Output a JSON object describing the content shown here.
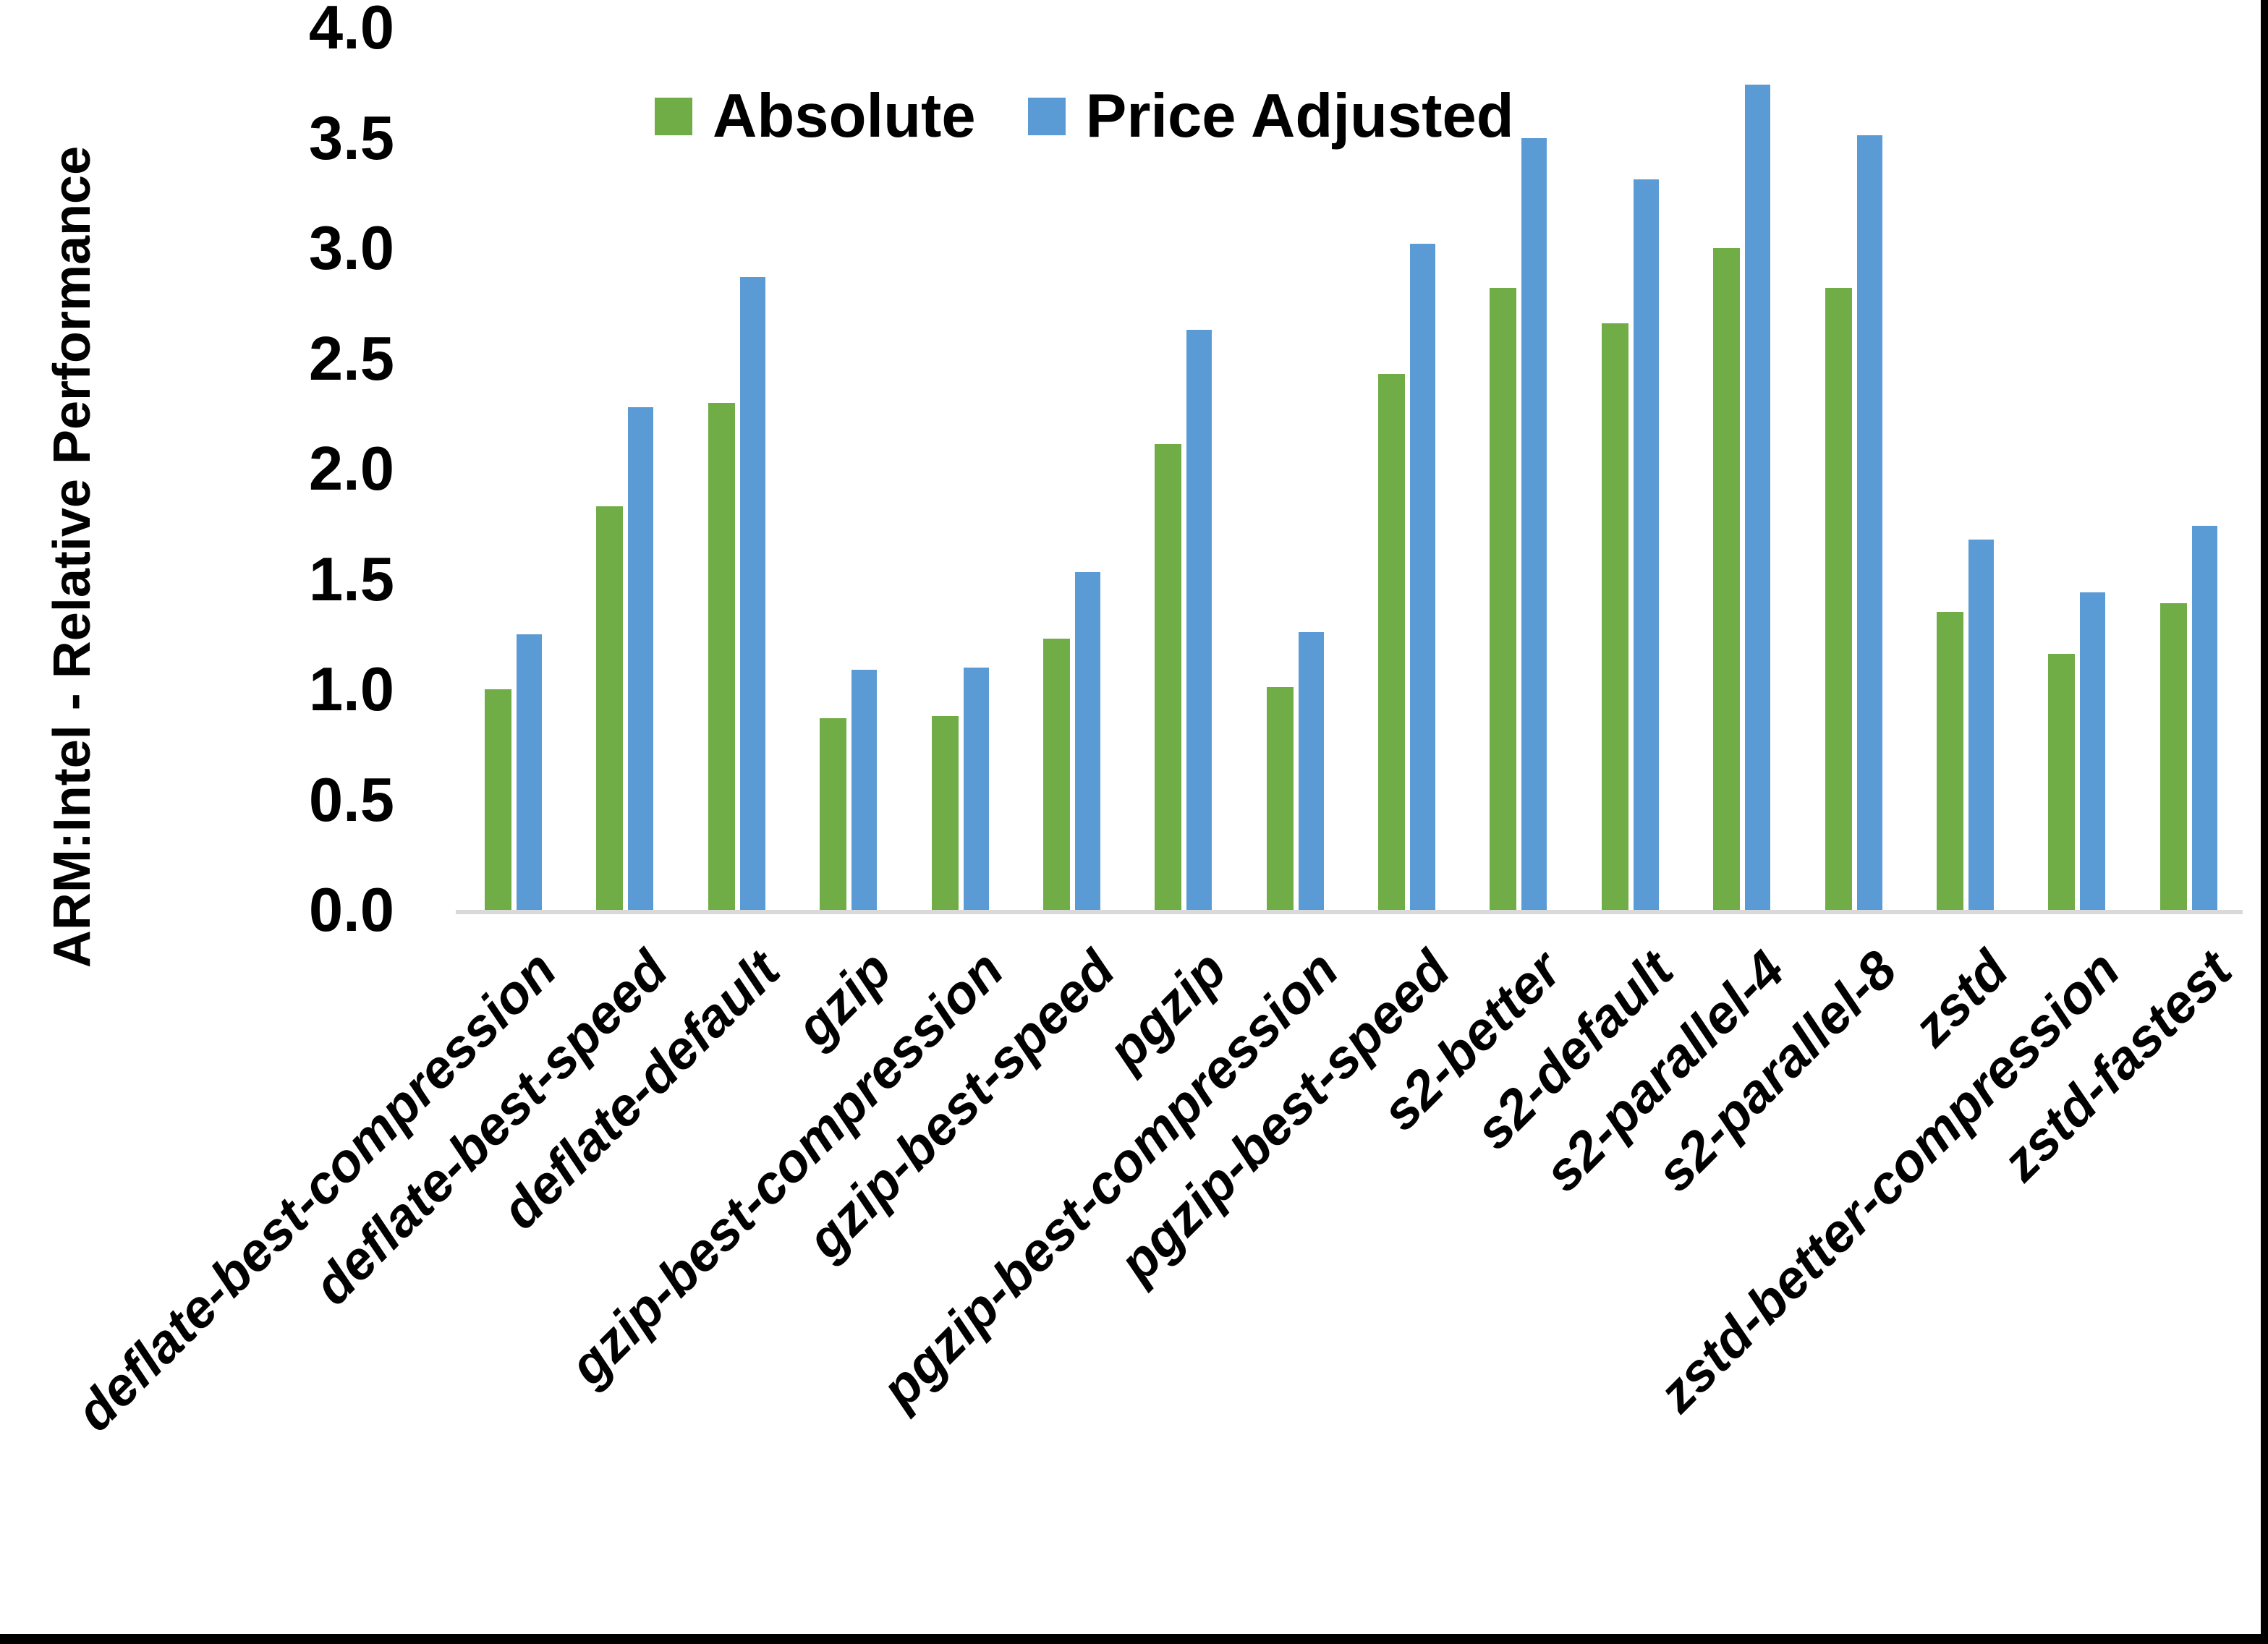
{
  "figure": {
    "background": "#FFFFFF",
    "frame_color": "#000000"
  },
  "chart_data": {
    "type": "bar",
    "title": "",
    "xlabel": "",
    "ylabel": "ARM:Intel - Relative Performance",
    "ylim": [
      0.0,
      4.0
    ],
    "ytick_step": 0.5,
    "ytick_labels": [
      "4.0",
      "3.5",
      "3.0",
      "2.5",
      "2.0",
      "1.5",
      "1.0",
      "0.5",
      "0.0"
    ],
    "grid": false,
    "legend_position": "top-center",
    "baseline_color": "#D9D9D9",
    "categories": [
      "deflate-best-compression",
      "deflate-best-speed",
      "deflate-default",
      "gzip",
      "gzip-best-compression",
      "gzip-best-speed",
      "pgzip",
      "pgzip-best-compression",
      "pgzip-best-speed",
      "s2-better",
      "s2-default",
      "s2-parallel-4",
      "s2-parallel-8",
      "zstd",
      "zstd-better-compression",
      "zstd-fastest"
    ],
    "series": [
      {
        "name": "Absolute",
        "color": "#70AD47",
        "values": [
          1.0,
          1.83,
          2.3,
          0.87,
          0.88,
          1.23,
          2.11,
          1.01,
          2.43,
          2.82,
          2.66,
          3.0,
          2.82,
          1.35,
          1.16,
          1.39
        ]
      },
      {
        "name": "Price Adjusted",
        "color": "#5B9BD5",
        "values": [
          1.25,
          2.28,
          2.87,
          1.09,
          1.1,
          1.53,
          2.63,
          1.26,
          3.02,
          3.5,
          3.31,
          3.74,
          3.51,
          1.68,
          1.44,
          1.74
        ]
      }
    ]
  }
}
